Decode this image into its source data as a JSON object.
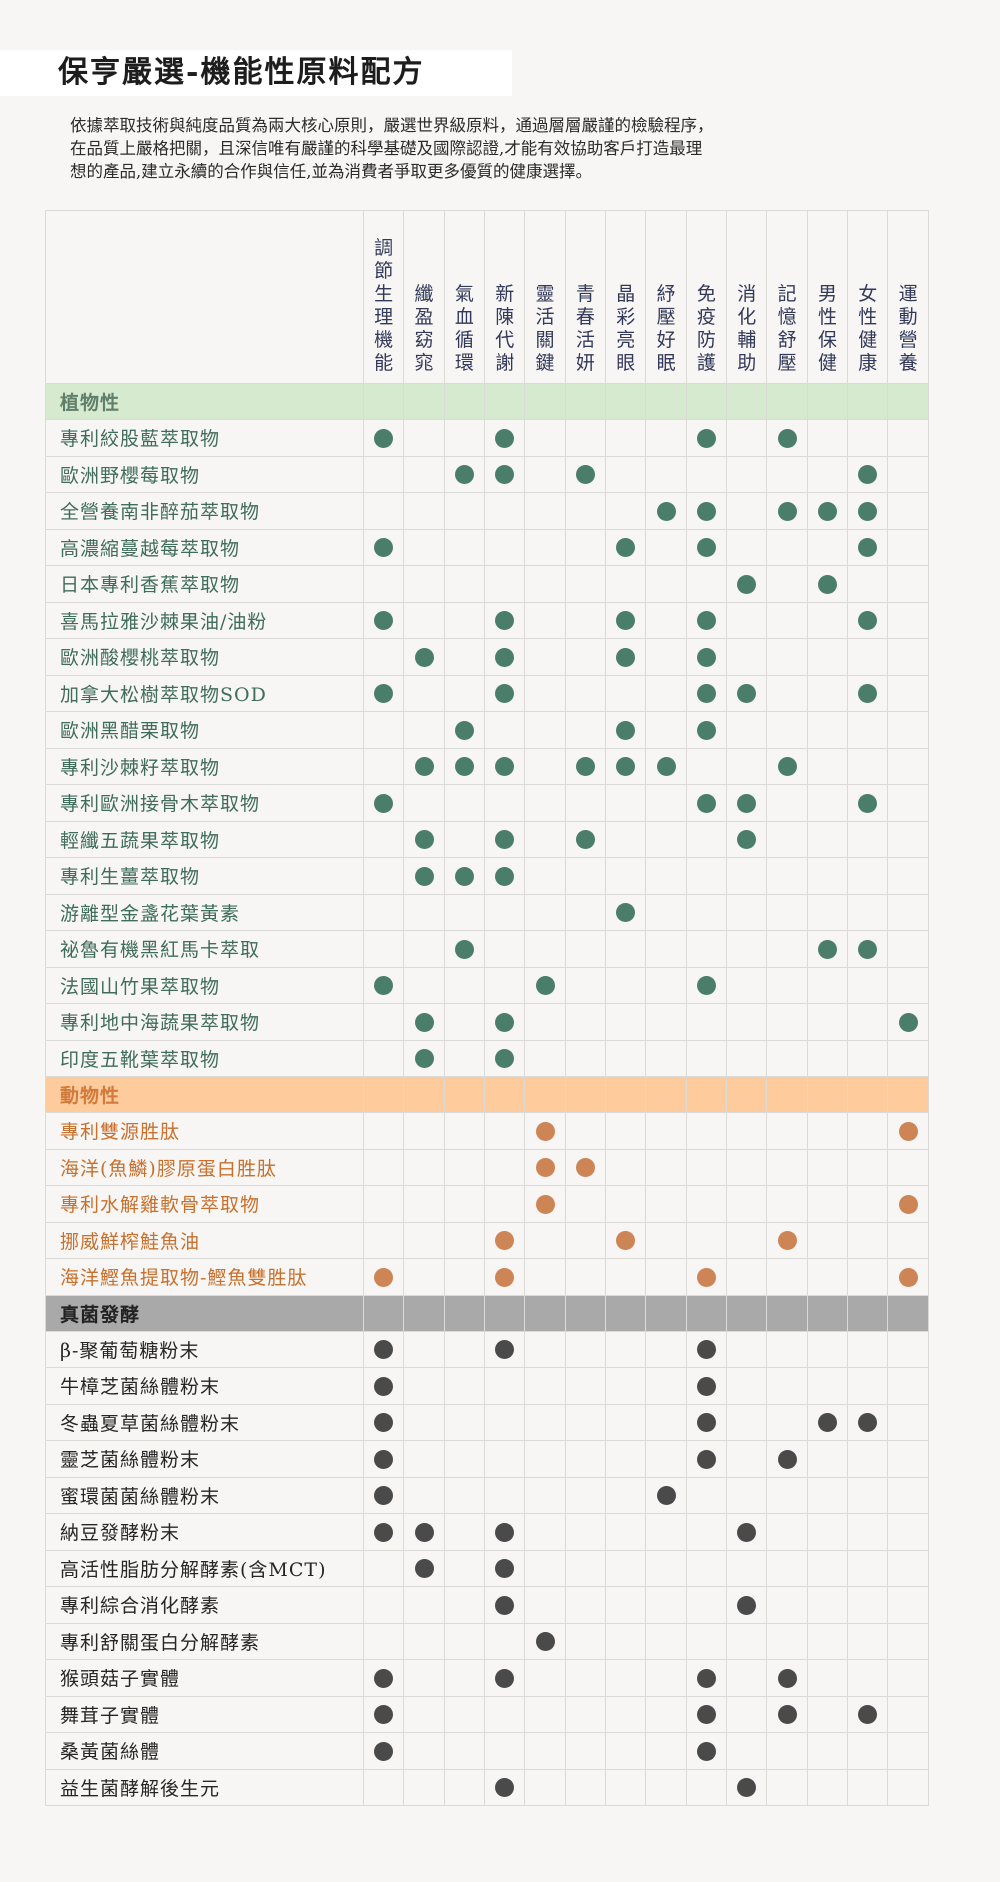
{
  "title": "保亨嚴選-機能性原料配方",
  "intro": [
    "依據萃取技術與純度品質為兩大核心原則，嚴選世界級原料，通過層層嚴謹的檢驗程序，",
    "在品質上嚴格把關，且深信唯有嚴謹的科學基礎及國際認證,才能有效協助客戶打造最理",
    "想的產品,建立永續的合作與信任,並為消費者爭取更多優質的健康選擇。"
  ],
  "columns": [
    "調節生理機能",
    "纖盈窈窕",
    "氣血循環",
    "新陳代謝",
    "靈活關鍵",
    "青春活妍",
    "晶彩亮眼",
    "紓壓好眠",
    "免疫防護",
    "消化輔助",
    "記憶舒壓",
    "男性保健",
    "女性健康",
    "運動營養"
  ],
  "colors": {
    "plant": "#4b7e6a",
    "animal": "#cd8555",
    "fungal": "#4a4a4a"
  },
  "sections": [
    {
      "key": "plant",
      "label": "植物性",
      "rows": [
        {
          "name": "專利絞股藍萃取物",
          "marks": [
            0,
            3,
            8,
            10
          ]
        },
        {
          "name": "歐洲野櫻莓取物",
          "marks": [
            2,
            3,
            5,
            12
          ]
        },
        {
          "name": "全營養南非醉茄萃取物",
          "marks": [
            7,
            8,
            10,
            11,
            12
          ]
        },
        {
          "name": "高濃縮蔓越莓萃取物",
          "marks": [
            0,
            6,
            8,
            12
          ]
        },
        {
          "name": "日本專利香蕉萃取物",
          "marks": [
            9,
            11
          ]
        },
        {
          "name": "喜馬拉雅沙棘果油/油粉",
          "marks": [
            0,
            3,
            6,
            8,
            12
          ]
        },
        {
          "name": "歐洲酸櫻桃萃取物",
          "marks": [
            1,
            3,
            6,
            8
          ]
        },
        {
          "name": "加拿大松樹萃取物SOD",
          "marks": [
            0,
            3,
            8,
            9,
            12
          ]
        },
        {
          "name": "歐洲黑醋栗取物",
          "marks": [
            2,
            6,
            8
          ]
        },
        {
          "name": "專利沙棘籽萃取物",
          "marks": [
            1,
            2,
            3,
            5,
            6,
            7,
            10
          ]
        },
        {
          "name": "專利歐洲接骨木萃取物",
          "marks": [
            0,
            8,
            9,
            12
          ]
        },
        {
          "name": "輕纖五蔬果萃取物",
          "marks": [
            1,
            3,
            5,
            9
          ]
        },
        {
          "name": "專利生薑萃取物",
          "marks": [
            1,
            2,
            3
          ]
        },
        {
          "name": "游離型金盞花葉黃素",
          "marks": [
            6
          ]
        },
        {
          "name": "祕魯有機黑紅馬卡萃取",
          "marks": [
            2,
            11,
            12
          ]
        },
        {
          "name": "法國山竹果萃取物",
          "marks": [
            0,
            4,
            8
          ]
        },
        {
          "name": "專利地中海蔬果萃取物",
          "marks": [
            1,
            3,
            13
          ]
        },
        {
          "name": "印度五靴葉萃取物",
          "marks": [
            1,
            3
          ]
        }
      ]
    },
    {
      "key": "animal",
      "label": "動物性",
      "rows": [
        {
          "name": "專利雙源胜肽",
          "marks": [
            4,
            13
          ]
        },
        {
          "name": "海洋(魚鱗)膠原蛋白胜肽",
          "marks": [
            4,
            5
          ]
        },
        {
          "name": "專利水解雞軟骨萃取物",
          "marks": [
            4,
            13
          ]
        },
        {
          "name": "挪威鮮榨鮭魚油",
          "marks": [
            3,
            6,
            10
          ]
        },
        {
          "name": "海洋鰹魚提取物-鰹魚雙胜肽",
          "marks": [
            0,
            3,
            8,
            13
          ]
        }
      ]
    },
    {
      "key": "fungal",
      "label": "真菌發酵",
      "rows": [
        {
          "name": "β-聚葡萄糖粉末",
          "marks": [
            0,
            3,
            8
          ]
        },
        {
          "name": "牛樟芝菌絲體粉末",
          "marks": [
            0,
            8
          ]
        },
        {
          "name": "冬蟲夏草菌絲體粉末",
          "marks": [
            0,
            8,
            11,
            12
          ]
        },
        {
          "name": "靈芝菌絲體粉末",
          "marks": [
            0,
            8,
            10
          ]
        },
        {
          "name": "蜜環菌菌絲體粉末",
          "marks": [
            0,
            7
          ]
        },
        {
          "name": "納豆發酵粉末",
          "marks": [
            0,
            1,
            3,
            9
          ]
        },
        {
          "name": "高活性脂肪分解酵素(含MCT)",
          "marks": [
            1,
            3
          ]
        },
        {
          "name": "專利綜合消化酵素",
          "marks": [
            3,
            9
          ]
        },
        {
          "name": "專利舒關蛋白分解酵素",
          "marks": [
            4
          ]
        },
        {
          "name": "猴頭菇子實體",
          "marks": [
            0,
            3,
            8,
            10
          ]
        },
        {
          "name": "舞茸子實體",
          "marks": [
            0,
            8,
            10,
            12
          ]
        },
        {
          "name": "桑黃菌絲體",
          "marks": [
            0,
            8
          ]
        },
        {
          "name": "益生菌酵解後生元",
          "marks": [
            3,
            9
          ]
        }
      ]
    }
  ]
}
